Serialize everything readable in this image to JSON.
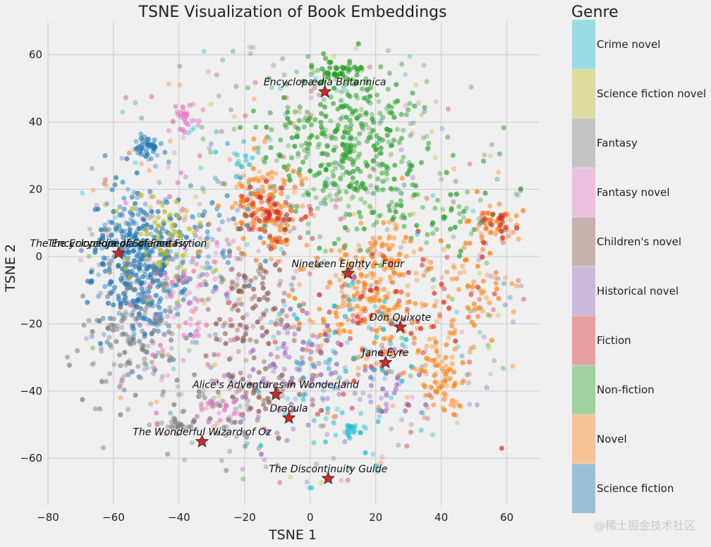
{
  "chart_data": {
    "type": "scatter",
    "title": "TSNE Visualization of Book Embeddings",
    "xlabel": "TSNE 1",
    "ylabel": "TSNE 2",
    "xlim": [
      -80,
      70
    ],
    "ylim": [
      -74,
      70
    ],
    "xticks": [
      -80,
      -60,
      -40,
      -20,
      0,
      20,
      40,
      60
    ],
    "yticks": [
      -60,
      -40,
      -20,
      0,
      20,
      40,
      60
    ],
    "xtick_labels": [
      "−80",
      "−60",
      "−40",
      "−20",
      "0",
      "20",
      "40",
      "60"
    ],
    "ytick_labels": [
      "−60",
      "−40",
      "−20",
      "0",
      "20",
      "40",
      "60"
    ],
    "grid": true,
    "legend": {
      "title": "Genre",
      "placement": "right",
      "entries": [
        {
          "name": "Crime novel",
          "color": "#17becf"
        },
        {
          "name": "Science fiction novel",
          "color": "#bcbd22"
        },
        {
          "name": "Fantasy",
          "color": "#7f7f7f"
        },
        {
          "name": "Fantasy novel",
          "color": "#e377c2"
        },
        {
          "name": "Children's novel",
          "color": "#8c564b"
        },
        {
          "name": "Historical novel",
          "color": "#9467bd"
        },
        {
          "name": "Fiction",
          "color": "#d62728"
        },
        {
          "name": "Non-fiction",
          "color": "#2ca02c"
        },
        {
          "name": "Novel",
          "color": "#ff7f0e"
        },
        {
          "name": "Science fiction",
          "color": "#1f77b4"
        }
      ]
    },
    "clusters": [
      {
        "genre": "Science fiction",
        "cx": -52,
        "cy": -3,
        "sx": 7,
        "sy": 11,
        "n": 420
      },
      {
        "genre": "Science fiction",
        "cx": -50,
        "cy": 33,
        "sx": 2,
        "sy": 2,
        "n": 40
      },
      {
        "genre": "Science fiction",
        "cx": -30,
        "cy": 8,
        "sx": 8,
        "sy": 10,
        "n": 60
      },
      {
        "genre": "Non-fiction",
        "cx": 12,
        "cy": 32,
        "sx": 12,
        "sy": 13,
        "n": 420
      },
      {
        "genre": "Non-fiction",
        "cx": 8,
        "cy": 55,
        "sx": 5,
        "sy": 2,
        "n": 50
      },
      {
        "genre": "Non-fiction",
        "cx": 40,
        "cy": 15,
        "sx": 10,
        "sy": 8,
        "n": 60
      },
      {
        "genre": "Novel",
        "cx": -14,
        "cy": 15,
        "sx": 6,
        "sy": 7,
        "n": 140
      },
      {
        "genre": "Novel",
        "cx": 20,
        "cy": -10,
        "sx": 10,
        "sy": 12,
        "n": 240
      },
      {
        "genre": "Novel",
        "cx": 40,
        "cy": -35,
        "sx": 4,
        "sy": 6,
        "n": 80
      },
      {
        "genre": "Novel",
        "cx": 57,
        "cy": 10,
        "sx": 4,
        "sy": 3,
        "n": 40
      },
      {
        "genre": "Novel",
        "cx": 50,
        "cy": -10,
        "sx": 6,
        "sy": 8,
        "n": 60
      },
      {
        "genre": "Fiction",
        "cx": -12,
        "cy": 12,
        "sx": 5,
        "sy": 5,
        "n": 60
      },
      {
        "genre": "Fiction",
        "cx": 25,
        "cy": -20,
        "sx": 14,
        "sy": 12,
        "n": 80
      },
      {
        "genre": "Fiction",
        "cx": 57,
        "cy": 10,
        "sx": 3,
        "sy": 3,
        "n": 20
      },
      {
        "genre": "Children's novel",
        "cx": -18,
        "cy": -15,
        "sx": 8,
        "sy": 10,
        "n": 120
      },
      {
        "genre": "Children's novel",
        "cx": -12,
        "cy": -40,
        "sx": 8,
        "sy": 5,
        "n": 50
      },
      {
        "genre": "Historical novel",
        "cx": -5,
        "cy": -35,
        "sx": 10,
        "sy": 10,
        "n": 90
      },
      {
        "genre": "Historical novel",
        "cx": 20,
        "cy": -40,
        "sx": 8,
        "sy": 5,
        "n": 40
      },
      {
        "genre": "Fantasy",
        "cx": -55,
        "cy": -25,
        "sx": 8,
        "sy": 12,
        "n": 140
      },
      {
        "genre": "Fantasy",
        "cx": -40,
        "cy": -50,
        "sx": 2,
        "sy": 1,
        "n": 20
      },
      {
        "genre": "Fantasy",
        "cx": -28,
        "cy": -48,
        "sx": 6,
        "sy": 6,
        "n": 40
      },
      {
        "genre": "Fantasy novel",
        "cx": -38,
        "cy": -10,
        "sx": 8,
        "sy": 12,
        "n": 100
      },
      {
        "genre": "Fantasy novel",
        "cx": -38,
        "cy": 42,
        "sx": 3,
        "sy": 2,
        "n": 30
      },
      {
        "genre": "Fantasy novel",
        "cx": -27,
        "cy": -45,
        "sx": 5,
        "sy": 3,
        "n": 30
      },
      {
        "genre": "Science fiction novel",
        "cx": -44,
        "cy": 5,
        "sx": 6,
        "sy": 8,
        "n": 70
      },
      {
        "genre": "Crime novel",
        "cx": 10,
        "cy": -30,
        "sx": 15,
        "sy": 18,
        "n": 80
      },
      {
        "genre": "Crime novel",
        "cx": 12,
        "cy": -52,
        "sx": 2,
        "sy": 1,
        "n": 20
      },
      {
        "genre": "Crime novel",
        "cx": -22,
        "cy": 30,
        "sx": 3,
        "sy": 3,
        "n": 15
      }
    ],
    "highlighted_books": [
      {
        "label": "Encyclopædia Britannica",
        "x": 4.5,
        "y": 49
      },
      {
        "label": "The Encyclopedia of Fantasy",
        "x": -58.5,
        "y": 1
      },
      {
        "label": "The Encyclopedia of Science Fiction",
        "x": -58.5,
        "y": 1
      },
      {
        "label": "Nineteen Eighty – Four",
        "x": 11.5,
        "y": -5
      },
      {
        "label": "Don Quixote",
        "x": 27.5,
        "y": -21
      },
      {
        "label": "Jane Eyre",
        "x": 23,
        "y": -31.5
      },
      {
        "label": "Alice's Adventures in Wonderland",
        "x": -10.5,
        "y": -41
      },
      {
        "label": "Dracula",
        "x": -6.5,
        "y": -48
      },
      {
        "label": "The Wonderful Wizard of Oz",
        "x": -33,
        "y": -55
      },
      {
        "label": "The Discontinuity Guide",
        "x": 5.5,
        "y": -66
      }
    ]
  },
  "watermark": "@稀土掘金技术社区"
}
